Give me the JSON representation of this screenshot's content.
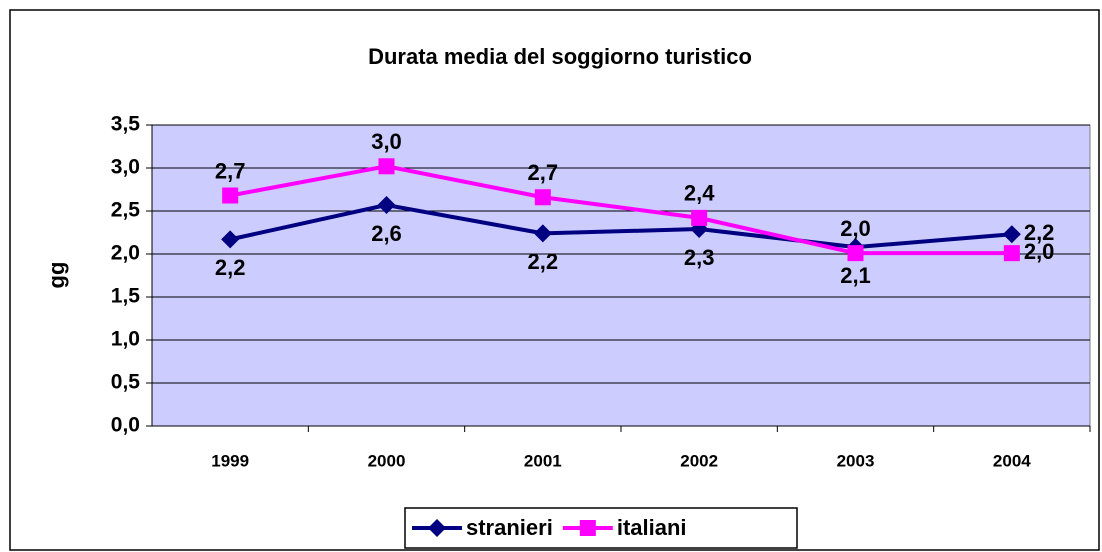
{
  "chart_data": {
    "type": "line",
    "title": "Durata media del soggiorno turistico",
    "y_label": "gg",
    "categories": [
      "1999",
      "2000",
      "2001",
      "2002",
      "2003",
      "2004"
    ],
    "series": [
      {
        "name": "stranieri",
        "color": "#000080",
        "values": [
          2.17,
          2.57,
          2.24,
          2.29,
          2.08,
          2.23
        ],
        "value_labels": [
          "2,2",
          "2,6",
          "2,2",
          "2,3",
          "2,1",
          "2,2"
        ]
      },
      {
        "name": "italiani",
        "color": "#ff00ff",
        "values": [
          2.68,
          3.02,
          2.66,
          2.42,
          2.01,
          2.01
        ],
        "value_labels": [
          "2,7",
          "3,0",
          "2,7",
          "2,4",
          "2,0",
          "2,0"
        ]
      }
    ],
    "ylim": [
      0,
      3.5
    ],
    "yticks": [
      {
        "value": 0,
        "label": "0,0"
      },
      {
        "value": 0.5,
        "label": "0,5"
      },
      {
        "value": 1,
        "label": "1,0"
      },
      {
        "value": 1.5,
        "label": "1,5"
      },
      {
        "value": 2,
        "label": "2,0"
      },
      {
        "value": 2.5,
        "label": "2,5"
      },
      {
        "value": 3,
        "label": "3,0"
      },
      {
        "value": 3.5,
        "label": "3,5"
      }
    ],
    "grid": true,
    "legend": "bottom"
  }
}
